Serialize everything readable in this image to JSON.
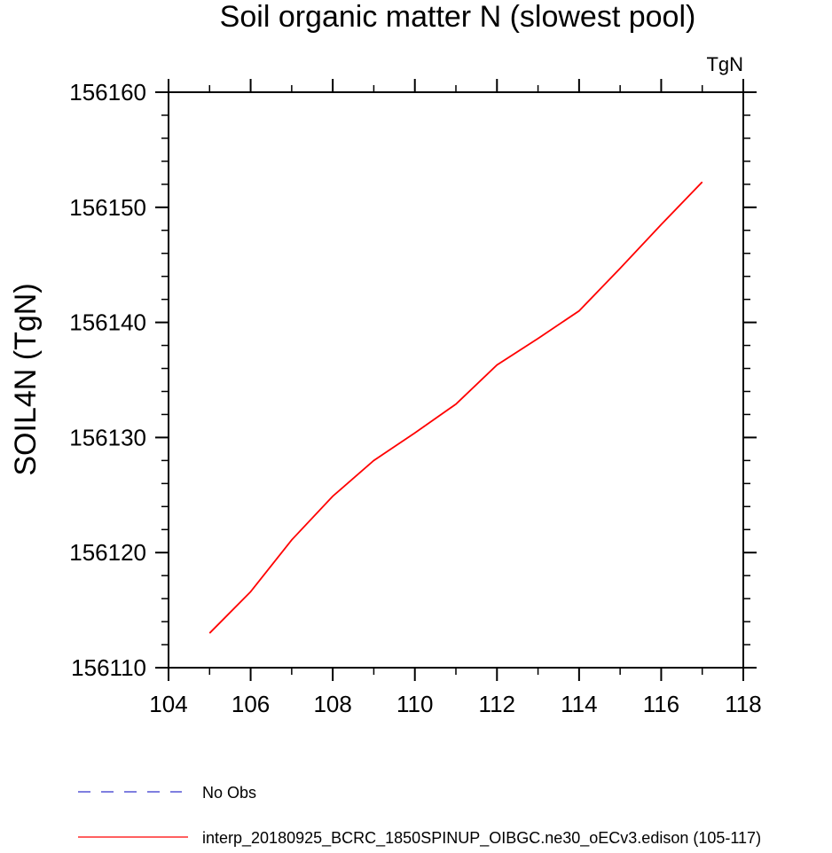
{
  "chart_data": {
    "type": "line",
    "title": "Soil organic matter N (slowest pool)",
    "units_label": "TgN",
    "xlabel": "",
    "ylabel": "SOIL4N  (TgN)",
    "xlim": [
      104,
      118
    ],
    "ylim": [
      156110,
      156160
    ],
    "xticks": [
      104,
      106,
      108,
      110,
      112,
      114,
      116,
      118
    ],
    "yticks": [
      156110,
      156120,
      156130,
      156140,
      156150,
      156160
    ],
    "grid": false,
    "legend_position": "bottom",
    "series": [
      {
        "name": "interp_20180925_BCRC_1850SPINUP_OIBGC.ne30_oECv3.edison (105-117)",
        "color": "#ff0000",
        "dash": "solid",
        "x": [
          105,
          106,
          107,
          108,
          109,
          110,
          111,
          112,
          113,
          114,
          115,
          116,
          117
        ],
        "y": [
          156113.0,
          156116.6,
          156121.1,
          156124.9,
          156128.0,
          156130.4,
          156132.9,
          156136.3,
          156138.6,
          156141.0,
          156144.7,
          156148.5,
          156152.2
        ]
      }
    ],
    "legend": [
      {
        "label": "No Obs",
        "color": "#3333cc",
        "dash": "dashed"
      },
      {
        "label": "interp_20180925_BCRC_1850SPINUP_OIBGC.ne30_oECv3.edison (105-117)",
        "color": "#ff0000",
        "dash": "solid"
      }
    ]
  }
}
